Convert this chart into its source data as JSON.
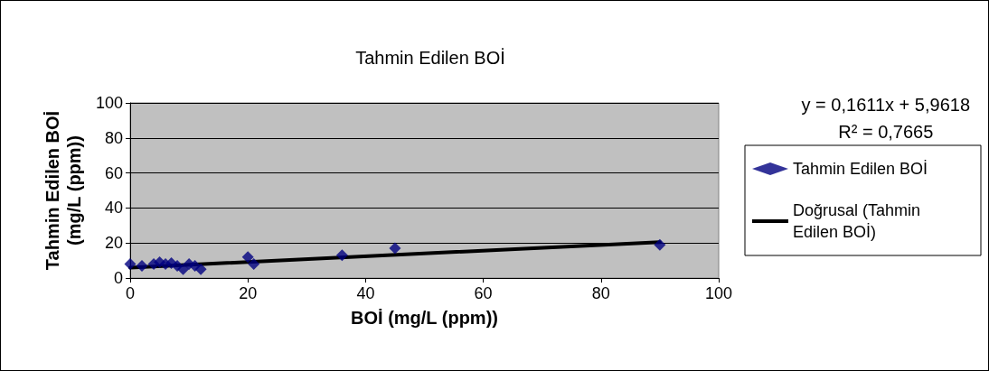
{
  "chart_data": {
    "type": "scatter",
    "title": "Tahmin Edilen BOİ",
    "xlabel": "BOİ (mg/L (ppm))",
    "ylabel": "Tahmin Edilen BOİ\n(mg/L (ppm))",
    "xlim": [
      0,
      100
    ],
    "xticks": [
      0,
      20,
      40,
      60,
      80,
      100
    ],
    "ylim": [
      0,
      100
    ],
    "yticks": [
      0,
      20,
      40,
      60,
      80,
      100
    ],
    "grid": "y",
    "legend": "right",
    "marker": "diamond",
    "annotations": [
      "y = 0,1611x + 5,9618\nR² = 0,7665"
    ],
    "series": [
      {
        "name": "Tahmin Edilen BOİ",
        "color": "#000080",
        "x": [
          0,
          2,
          4,
          5,
          6,
          7,
          8,
          9,
          10,
          11,
          12,
          20,
          21,
          36,
          45,
          90
        ],
        "values": [
          8,
          7,
          8,
          9,
          8,
          8.5,
          7,
          5,
          8,
          7,
          5,
          12,
          8,
          13,
          17,
          19
        ]
      },
      {
        "name": "Doğrusal (Tahmin Edilen BOİ)",
        "type": "line",
        "color": "#000000",
        "marker": "none",
        "line_style": "solid",
        "x": [
          0,
          90
        ],
        "values": [
          5.9618,
          20.4608
        ]
      }
    ]
  }
}
